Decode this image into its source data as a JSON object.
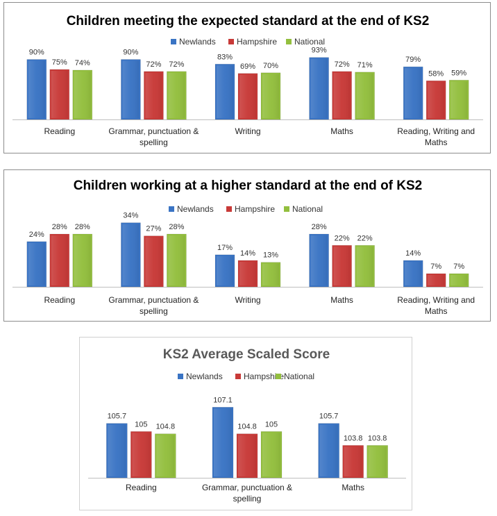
{
  "colors": {
    "Newlands": "#3a74c4",
    "Hampshire": "#c83a38",
    "National": "#93bf3e"
  },
  "chart_data": [
    {
      "type": "bar",
      "title": "Children meeting the expected standard at the end of KS2",
      "legend": "top",
      "value_suffix": "%",
      "categories": [
        "Reading",
        "Grammar, punctuation & spelling",
        "Writing",
        "Maths",
        "Reading, Writing and Maths"
      ],
      "series": [
        {
          "name": "Newlands",
          "values": [
            90,
            90,
            83,
            93,
            79
          ]
        },
        {
          "name": "Hampshire",
          "values": [
            75,
            72,
            69,
            72,
            58
          ]
        },
        {
          "name": "National",
          "values": [
            74,
            72,
            70,
            71,
            59
          ]
        }
      ],
      "ylim": [
        0,
        100
      ],
      "grid": false
    },
    {
      "type": "bar",
      "title": "Children working at a higher standard at the end of KS2",
      "legend": "top",
      "value_suffix": "%",
      "categories": [
        "Reading",
        "Grammar, punctuation & spelling",
        "Writing",
        "Maths",
        "Reading, Writing and Maths"
      ],
      "series": [
        {
          "name": "Newlands",
          "values": [
            24,
            34,
            17,
            28,
            14
          ]
        },
        {
          "name": "Hampshire",
          "values": [
            28,
            27,
            14,
            22,
            7
          ]
        },
        {
          "name": "National",
          "values": [
            28,
            28,
            13,
            22,
            7
          ]
        }
      ],
      "ylim": [
        0,
        35
      ],
      "grid": false
    },
    {
      "type": "bar",
      "title": "KS2 Average Scaled Score",
      "legend": "top",
      "value_suffix": "",
      "categories": [
        "Reading",
        "Grammar, punctuation & spelling",
        "Maths"
      ],
      "series": [
        {
          "name": "Newlands",
          "values": [
            105.7,
            107.1,
            105.7
          ]
        },
        {
          "name": "Hampshire",
          "values": [
            105,
            104.8,
            103.8
          ]
        },
        {
          "name": "National",
          "values": [
            104.8,
            105,
            103.8
          ]
        }
      ],
      "ylim": [
        101,
        107.6
      ],
      "grid": false
    }
  ]
}
